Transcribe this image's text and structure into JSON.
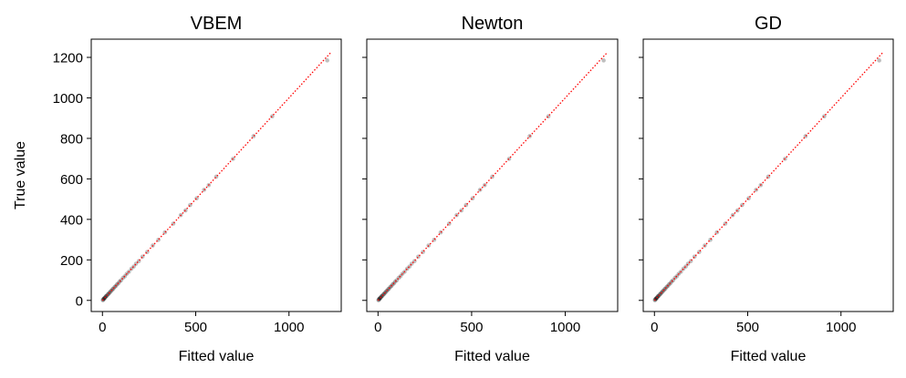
{
  "chart_data": [
    {
      "type": "scatter",
      "title": "VBEM",
      "xlabel": "Fitted value",
      "ylabel": "True value",
      "xlim": [
        -60,
        1280
      ],
      "ylim": [
        -55,
        1290
      ],
      "xticks": [
        0,
        500,
        1000
      ],
      "yticks": [
        0,
        200,
        400,
        600,
        800,
        1000,
        1200
      ],
      "show_yticklabels": true,
      "reference_line": {
        "style": "dotted",
        "color": "#ff0000",
        "from": [
          0,
          0
        ],
        "to": [
          1225,
          1225
        ]
      },
      "series": [
        {
          "marker_color": "#000000",
          "marker_alpha": 0.25,
          "x": [
            2,
            4,
            6,
            8,
            10,
            12,
            15,
            18,
            20,
            24,
            28,
            32,
            36,
            40,
            45,
            50,
            55,
            60,
            66,
            72,
            78,
            85,
            92,
            100,
            110,
            120,
            130,
            142,
            155,
            168,
            180,
            195,
            215,
            240,
            270,
            300,
            335,
            380,
            420,
            445,
            470,
            505,
            545,
            570,
            610,
            700,
            810,
            910,
            1205
          ],
          "y": [
            1,
            3,
            7,
            8,
            9,
            13,
            14,
            19,
            21,
            23,
            29,
            31,
            37,
            39,
            46,
            49,
            56,
            59,
            67,
            71,
            79,
            84,
            93,
            99,
            111,
            119,
            131,
            141,
            156,
            167,
            181,
            194,
            216,
            239,
            271,
            299,
            336,
            379,
            421,
            444,
            471,
            504,
            546,
            569,
            611,
            699,
            811,
            909,
            1185
          ]
        }
      ]
    },
    {
      "type": "scatter",
      "title": "Newton",
      "xlabel": "Fitted value",
      "ylabel": "",
      "xlim": [
        -60,
        1280
      ],
      "ylim": [
        -55,
        1290
      ],
      "xticks": [
        0,
        500,
        1000
      ],
      "yticks": [
        0,
        200,
        400,
        600,
        800,
        1000,
        1200
      ],
      "show_yticklabels": false,
      "reference_line": {
        "style": "dotted",
        "color": "#ff0000",
        "from": [
          0,
          0
        ],
        "to": [
          1225,
          1225
        ]
      },
      "series": [
        {
          "marker_color": "#000000",
          "marker_alpha": 0.25,
          "x": [
            2,
            4,
            6,
            8,
            10,
            12,
            15,
            18,
            20,
            24,
            28,
            32,
            36,
            40,
            45,
            50,
            55,
            60,
            66,
            72,
            78,
            85,
            92,
            100,
            110,
            120,
            130,
            142,
            155,
            168,
            180,
            195,
            215,
            240,
            270,
            300,
            335,
            380,
            420,
            445,
            470,
            505,
            545,
            570,
            610,
            700,
            810,
            910,
            1205
          ],
          "y": [
            1,
            3,
            7,
            8,
            9,
            13,
            14,
            19,
            21,
            23,
            29,
            31,
            37,
            39,
            46,
            49,
            56,
            59,
            67,
            71,
            79,
            84,
            93,
            99,
            111,
            119,
            131,
            141,
            156,
            167,
            181,
            194,
            216,
            239,
            271,
            299,
            336,
            379,
            421,
            444,
            471,
            504,
            546,
            569,
            611,
            699,
            811,
            909,
            1185
          ]
        }
      ]
    },
    {
      "type": "scatter",
      "title": "GD",
      "xlabel": "Fitted value",
      "ylabel": "",
      "xlim": [
        -60,
        1280
      ],
      "ylim": [
        -55,
        1290
      ],
      "xticks": [
        0,
        500,
        1000
      ],
      "yticks": [
        0,
        200,
        400,
        600,
        800,
        1000,
        1200
      ],
      "show_yticklabels": false,
      "reference_line": {
        "style": "dotted",
        "color": "#ff0000",
        "from": [
          0,
          0
        ],
        "to": [
          1225,
          1225
        ]
      },
      "series": [
        {
          "marker_color": "#000000",
          "marker_alpha": 0.25,
          "x": [
            2,
            4,
            6,
            8,
            10,
            12,
            15,
            18,
            20,
            24,
            28,
            32,
            36,
            40,
            45,
            50,
            55,
            60,
            66,
            72,
            78,
            85,
            92,
            100,
            110,
            120,
            130,
            142,
            155,
            168,
            180,
            195,
            215,
            240,
            270,
            300,
            335,
            380,
            420,
            445,
            470,
            505,
            545,
            570,
            610,
            700,
            810,
            910,
            1205
          ],
          "y": [
            1,
            3,
            7,
            8,
            9,
            13,
            14,
            19,
            21,
            23,
            29,
            31,
            37,
            39,
            46,
            49,
            56,
            59,
            67,
            71,
            79,
            84,
            93,
            99,
            111,
            119,
            131,
            141,
            156,
            167,
            181,
            194,
            216,
            239,
            271,
            299,
            336,
            379,
            421,
            444,
            471,
            504,
            546,
            569,
            611,
            699,
            811,
            909,
            1185
          ]
        }
      ]
    }
  ]
}
